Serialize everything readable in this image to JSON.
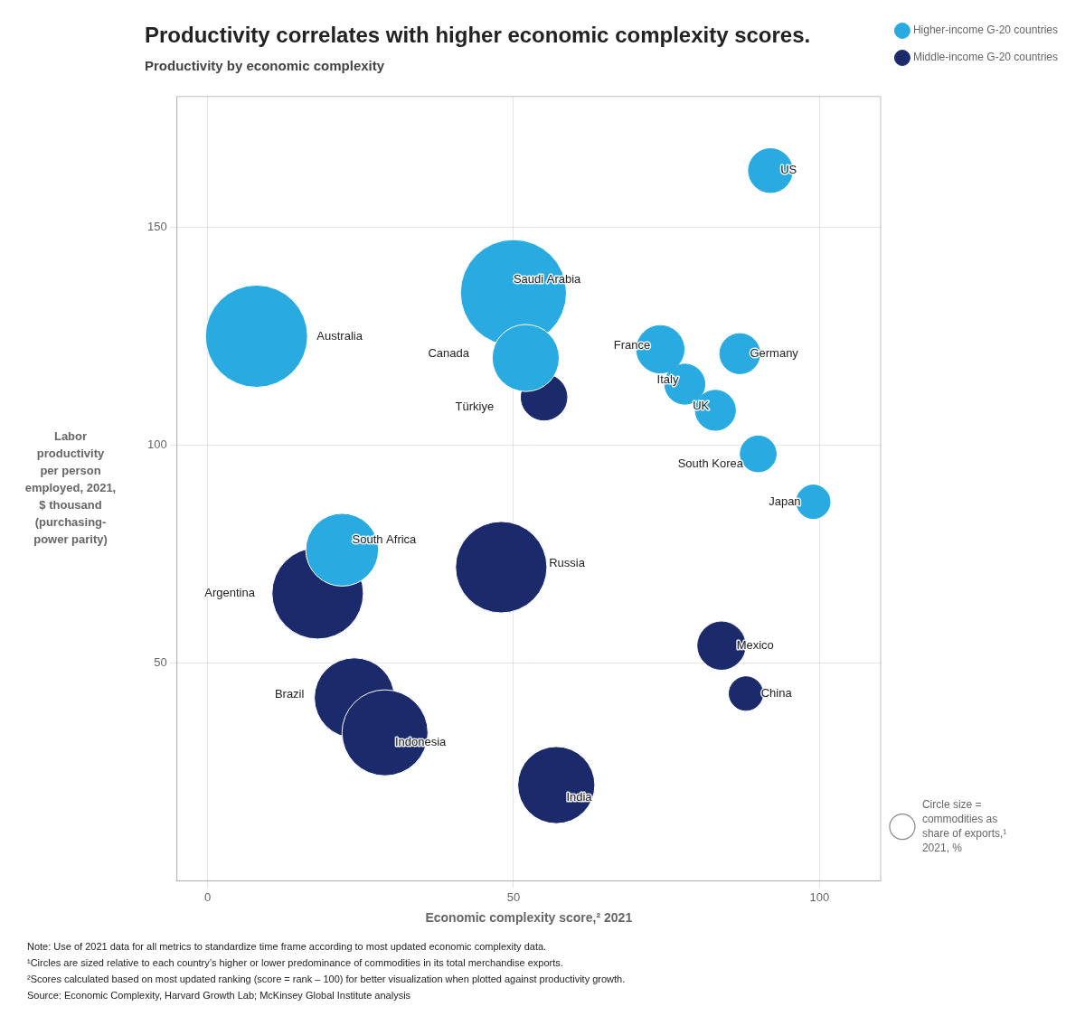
{
  "chart_data": {
    "type": "bubble",
    "title": "Productivity correlates with higher economic complexity scores.",
    "subtitle": "Productivity by economic complexity",
    "xlabel": "Economic complexity score,² 2021",
    "ylabel": [
      "Labor",
      "productivity",
      "per person",
      "employed, 2021,",
      "$ thousand",
      "(purchasing-",
      "power parity)"
    ],
    "series": [
      {
        "name": "Higher-income G-20 countries",
        "color": "#29ABE2",
        "labels": [
          "US",
          "Australia",
          "Saudi Arabia",
          "Canada",
          "France",
          "Germany",
          "Italy",
          "UK",
          "South Korea",
          "Japan",
          "South Africa"
        ],
        "x": [
          92,
          8,
          50,
          52,
          74,
          87,
          78,
          83,
          90,
          99,
          22
        ],
        "values": [
          163,
          125,
          135,
          120,
          122,
          121,
          114,
          108,
          98,
          87,
          76
        ],
        "sizes": [
          12,
          65,
          70,
          28,
          14,
          10,
          10,
          10,
          8,
          7,
          33
        ]
      },
      {
        "name": "Middle-income G-20 countries",
        "color": "#1B2A6B",
        "labels": [
          "Türkiye",
          "Russia",
          "Argentina",
          "Mexico",
          "China",
          "Brazil",
          "Indonesia",
          "India"
        ],
        "x": [
          55,
          48,
          18,
          84,
          88,
          24,
          29,
          57
        ],
        "values": [
          111,
          72,
          66,
          54,
          43,
          42,
          34,
          22
        ],
        "sizes": [
          13,
          52,
          52,
          14,
          7,
          40,
          46,
          37
        ]
      }
    ],
    "size_legend": [
      "Circle size =",
      "commodities as",
      "share of exports,¹",
      "2021, %"
    ],
    "notes": [
      "Note: Use of 2021 data for all metrics to standardize time frame according to most updated economic complexity data.",
      "¹Circles are sized relative to each country’s higher or lower predominance of commodities in its total merchandise exports.",
      "²Scores calculated based on most updated ranking (score = rank – 100) for better visualization when plotted against productivity growth.",
      "Source: Economic Complexity, Harvard Growth Lab; McKinsey Global Institute analysis"
    ],
    "xlim": [
      -5,
      110
    ],
    "xticks": [
      0,
      50,
      100
    ],
    "ylim": [
      0,
      180
    ],
    "yticks": [
      50,
      100,
      150
    ],
    "grid": true,
    "legend": "right"
  }
}
